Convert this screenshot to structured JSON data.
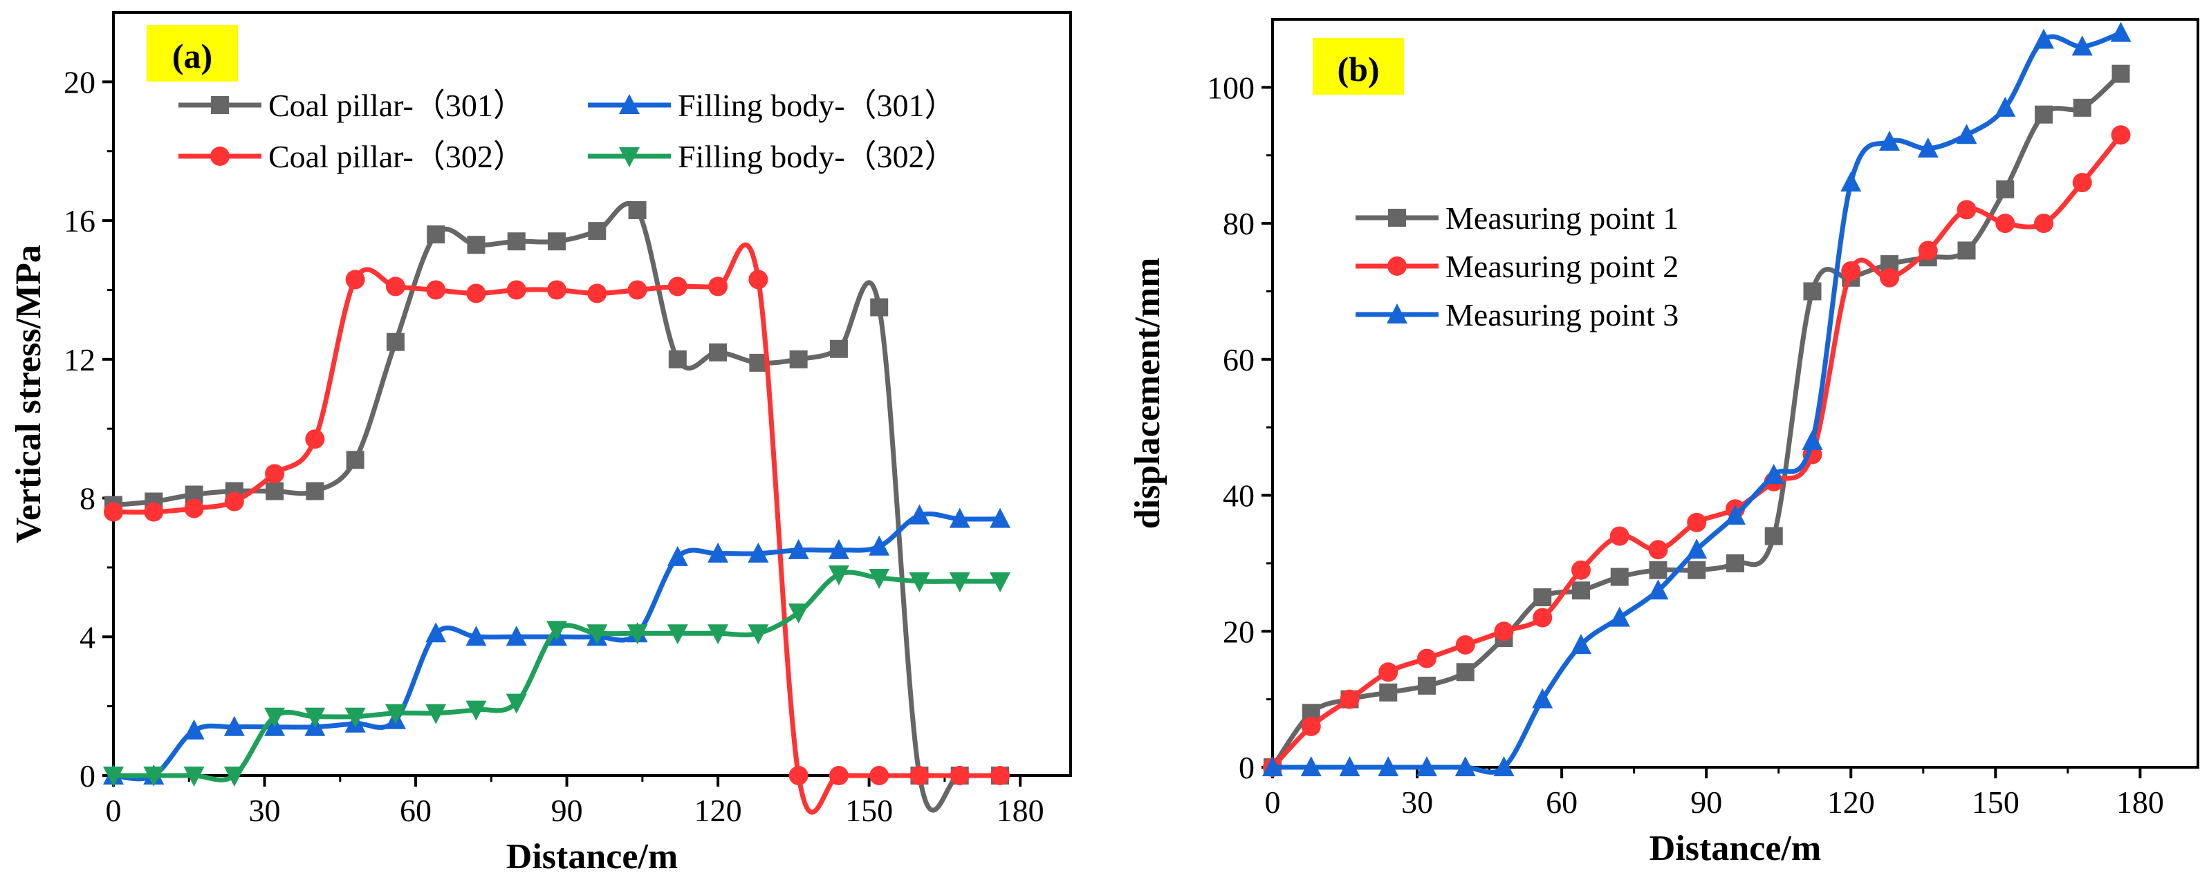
{
  "chart_data": [
    {
      "type": "line",
      "panel_label": "(a)",
      "panel_bg": "#ffff00",
      "xlabel": "Distance/m",
      "ylabel": "Vertical stress/MPa",
      "xlim": [
        0,
        190
      ],
      "ylim": [
        0,
        22
      ],
      "xticks": [
        0,
        30,
        60,
        90,
        120,
        150,
        180
      ],
      "yticks": [
        0,
        4,
        8,
        12,
        16,
        20
      ],
      "legend_position": "top",
      "series": [
        {
          "name": "Coal pillar-（301）",
          "color": "#666666",
          "marker": "square",
          "x": [
            0,
            8,
            16,
            24,
            32,
            40,
            48,
            56,
            64,
            72,
            80,
            88,
            96,
            104,
            112,
            120,
            128,
            136,
            144,
            152,
            160,
            168,
            176
          ],
          "y": [
            7.8,
            7.9,
            8.1,
            8.2,
            8.2,
            8.2,
            9.1,
            12.5,
            15.6,
            15.3,
            15.4,
            15.4,
            15.7,
            16.3,
            12.0,
            12.2,
            11.9,
            12.0,
            12.3,
            13.5,
            0.0,
            0.0,
            0.0
          ]
        },
        {
          "name": "Coal pillar-（302）",
          "color": "#ff3333",
          "marker": "circle",
          "x": [
            0,
            8,
            16,
            24,
            32,
            40,
            48,
            56,
            64,
            72,
            80,
            88,
            96,
            104,
            112,
            120,
            128,
            136,
            144,
            152,
            160,
            168,
            176
          ],
          "y": [
            7.6,
            7.6,
            7.7,
            7.9,
            8.7,
            9.7,
            14.3,
            14.1,
            14.0,
            13.9,
            14.0,
            14.0,
            13.9,
            14.0,
            14.1,
            14.1,
            14.3,
            0.0,
            0.0,
            0.0,
            0.0,
            0.0,
            0.0
          ]
        },
        {
          "name": "Filling body-（301）",
          "color": "#1565d8",
          "marker": "triangle-up",
          "x": [
            0,
            8,
            16,
            24,
            32,
            40,
            48,
            56,
            64,
            72,
            80,
            88,
            96,
            104,
            112,
            120,
            128,
            136,
            144,
            152,
            160,
            168,
            176
          ],
          "y": [
            0.0,
            0.0,
            1.3,
            1.4,
            1.4,
            1.4,
            1.5,
            1.6,
            4.1,
            4.0,
            4.0,
            4.0,
            4.0,
            4.1,
            6.3,
            6.4,
            6.4,
            6.5,
            6.5,
            6.6,
            7.5,
            7.4,
            7.4
          ]
        },
        {
          "name": "Filling body-（302）",
          "color": "#1fa05a",
          "marker": "triangle-down",
          "x": [
            0,
            8,
            16,
            24,
            32,
            40,
            48,
            56,
            64,
            72,
            80,
            88,
            96,
            104,
            112,
            120,
            128,
            136,
            144,
            152,
            160,
            168,
            176
          ],
          "y": [
            0.0,
            0.0,
            0.0,
            0.0,
            1.7,
            1.7,
            1.7,
            1.8,
            1.8,
            1.9,
            2.1,
            4.2,
            4.1,
            4.1,
            4.1,
            4.1,
            4.1,
            4.7,
            5.8,
            5.7,
            5.6,
            5.6,
            5.6
          ]
        }
      ]
    },
    {
      "type": "line",
      "panel_label": "(b)",
      "panel_bg": "#ffff00",
      "xlabel": "Distance/m",
      "ylabel": "displacement/mm",
      "xlim": [
        0,
        192
      ],
      "ylim": [
        0,
        110
      ],
      "xticks": [
        0,
        30,
        60,
        90,
        120,
        150,
        180
      ],
      "yticks": [
        0,
        20,
        40,
        60,
        80,
        100
      ],
      "legend_position": "center-left",
      "series": [
        {
          "name": "Measuring point 1",
          "color": "#666666",
          "marker": "square",
          "x": [
            0,
            8,
            16,
            24,
            32,
            40,
            48,
            56,
            64,
            72,
            80,
            88,
            96,
            104,
            112,
            120,
            128,
            136,
            144,
            152,
            160,
            168,
            176
          ],
          "y": [
            0,
            8,
            10,
            11,
            12,
            14,
            19,
            25,
            26,
            28,
            29,
            29,
            30,
            34,
            70,
            72,
            74,
            75,
            76,
            85,
            96,
            97,
            102
          ]
        },
        {
          "name": "Measuring point 2",
          "color": "#ff3333",
          "marker": "circle",
          "x": [
            0,
            8,
            16,
            24,
            32,
            40,
            48,
            56,
            64,
            72,
            80,
            88,
            96,
            104,
            112,
            120,
            128,
            136,
            144,
            152,
            160,
            168,
            176
          ],
          "y": [
            0,
            6,
            10,
            14,
            16,
            18,
            20,
            22,
            29,
            34,
            32,
            36,
            38,
            42,
            46,
            73,
            72,
            76,
            82,
            80,
            80,
            86,
            93
          ]
        },
        {
          "name": "Measuring point 3",
          "color": "#1565d8",
          "marker": "triangle-up",
          "x": [
            0,
            8,
            16,
            24,
            32,
            40,
            48,
            56,
            64,
            72,
            80,
            88,
            96,
            104,
            112,
            120,
            128,
            136,
            144,
            152,
            160,
            168,
            176
          ],
          "y": [
            0,
            0,
            0,
            0,
            0,
            0,
            0,
            10,
            18,
            22,
            26,
            32,
            37,
            43,
            48,
            86,
            92,
            91,
            93,
            97,
            107,
            106,
            108
          ]
        }
      ]
    }
  ]
}
